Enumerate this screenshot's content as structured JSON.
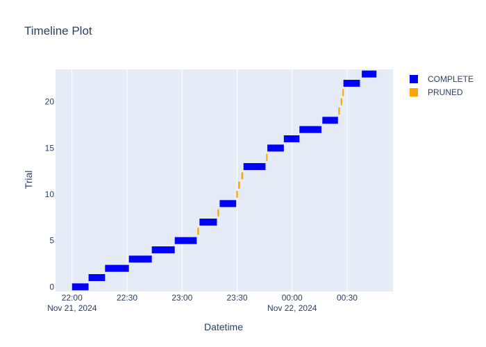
{
  "chart_data": {
    "type": "timeline",
    "title": "Timeline Plot",
    "xlabel": "Datetime",
    "ylabel": "Trial",
    "x_ticks": [
      {
        "label": "22:00",
        "sublabel": "Nov 21, 2024",
        "minutes": 0
      },
      {
        "label": "22:30",
        "sublabel": "",
        "minutes": 30
      },
      {
        "label": "23:00",
        "sublabel": "",
        "minutes": 60
      },
      {
        "label": "23:30",
        "sublabel": "",
        "minutes": 90
      },
      {
        "label": "00:00",
        "sublabel": "Nov 22, 2024",
        "minutes": 120
      },
      {
        "label": "00:30",
        "sublabel": "",
        "minutes": 150
      }
    ],
    "x_range_minutes": [
      -9,
      175
    ],
    "y_ticks": [
      0,
      5,
      10,
      15,
      20
    ],
    "y_range": [
      -0.5,
      23.5
    ],
    "grid": true,
    "legend_position": "top-right",
    "legend": [
      {
        "name": "COMPLETE",
        "color": "#0000ff"
      },
      {
        "name": "PRUNED",
        "color": "#ffa500"
      }
    ],
    "series": [
      {
        "name": "COMPLETE",
        "color": "#0000ff",
        "bars": [
          {
            "trial": 0,
            "start": 0,
            "end": 9
          },
          {
            "trial": 1,
            "start": 9,
            "end": 18
          },
          {
            "trial": 2,
            "start": 18,
            "end": 31
          },
          {
            "trial": 3,
            "start": 31,
            "end": 43.5
          },
          {
            "trial": 4,
            "start": 43.5,
            "end": 56
          },
          {
            "trial": 5,
            "start": 56,
            "end": 68
          },
          {
            "trial": 7,
            "start": 69.5,
            "end": 79
          },
          {
            "trial": 9,
            "start": 80.5,
            "end": 89.5
          },
          {
            "trial": 13,
            "start": 93.5,
            "end": 105.5
          },
          {
            "trial": 15,
            "start": 106.5,
            "end": 115.5
          },
          {
            "trial": 16,
            "start": 115.5,
            "end": 124
          },
          {
            "trial": 17,
            "start": 124,
            "end": 136
          },
          {
            "trial": 18,
            "start": 136.5,
            "end": 145
          },
          {
            "trial": 22,
            "start": 148,
            "end": 157
          },
          {
            "trial": 23,
            "start": 158,
            "end": 166
          }
        ]
      },
      {
        "name": "PRUNED",
        "color": "#ffa500",
        "bars": [
          {
            "trial": 6,
            "start": 68.3,
            "end": 69.2
          },
          {
            "trial": 8,
            "start": 79.3,
            "end": 80.2
          },
          {
            "trial": 10,
            "start": 89.6,
            "end": 90.4
          },
          {
            "trial": 11,
            "start": 90.6,
            "end": 91.6
          },
          {
            "trial": 12,
            "start": 92.3,
            "end": 93.3
          },
          {
            "trial": 14,
            "start": 105.8,
            "end": 106.6
          },
          {
            "trial": 19,
            "start": 145.2,
            "end": 146.1
          },
          {
            "trial": 20,
            "start": 146.5,
            "end": 147.3
          },
          {
            "trial": 21,
            "start": 147.4,
            "end": 148.2
          }
        ]
      }
    ]
  }
}
